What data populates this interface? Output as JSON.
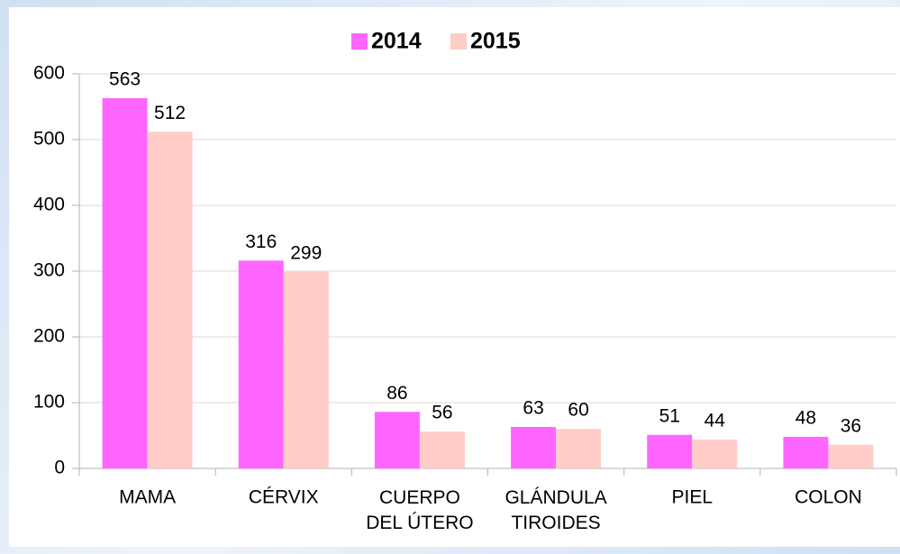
{
  "chart_data": {
    "type": "bar",
    "categories": [
      "MAMA",
      "CÉRVIX",
      "CUERPO DEL ÚTERO",
      "GLÁNDULA TIROIDES",
      "PIEL",
      "COLON"
    ],
    "series": [
      {
        "name": "2014",
        "color": "#ff66ff",
        "values": [
          563,
          316,
          86,
          63,
          51,
          48
        ]
      },
      {
        "name": "2015",
        "color": "#ffccc8",
        "values": [
          512,
          299,
          56,
          60,
          44,
          36
        ]
      }
    ],
    "ylim": [
      0,
      600
    ],
    "yticks": [
      0,
      100,
      200,
      300,
      400,
      500,
      600
    ],
    "grid": true,
    "legend": "top"
  }
}
